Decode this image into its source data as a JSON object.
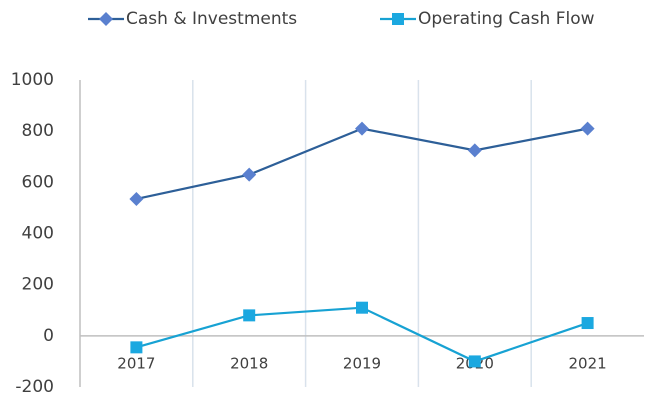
{
  "chart_data": {
    "type": "line",
    "categories": [
      "2017",
      "2018",
      "2019",
      "2020",
      "2021"
    ],
    "series": [
      {
        "name": "Cash & Investments",
        "color": "#2d5f98",
        "marker_color": "#5a80cf",
        "marker": "diamond",
        "values": [
          535,
          630,
          810,
          725,
          810
        ]
      },
      {
        "name": "Operating Cash Flow",
        "color": "#17a2d3",
        "marker_color": "#1ba8e0",
        "marker": "square",
        "values": [
          -45,
          80,
          110,
          -100,
          50
        ]
      }
    ],
    "ylim": [
      -200,
      1000
    ],
    "yticks": [
      -200,
      0,
      200,
      400,
      600,
      800,
      1000
    ],
    "legend": "top"
  }
}
